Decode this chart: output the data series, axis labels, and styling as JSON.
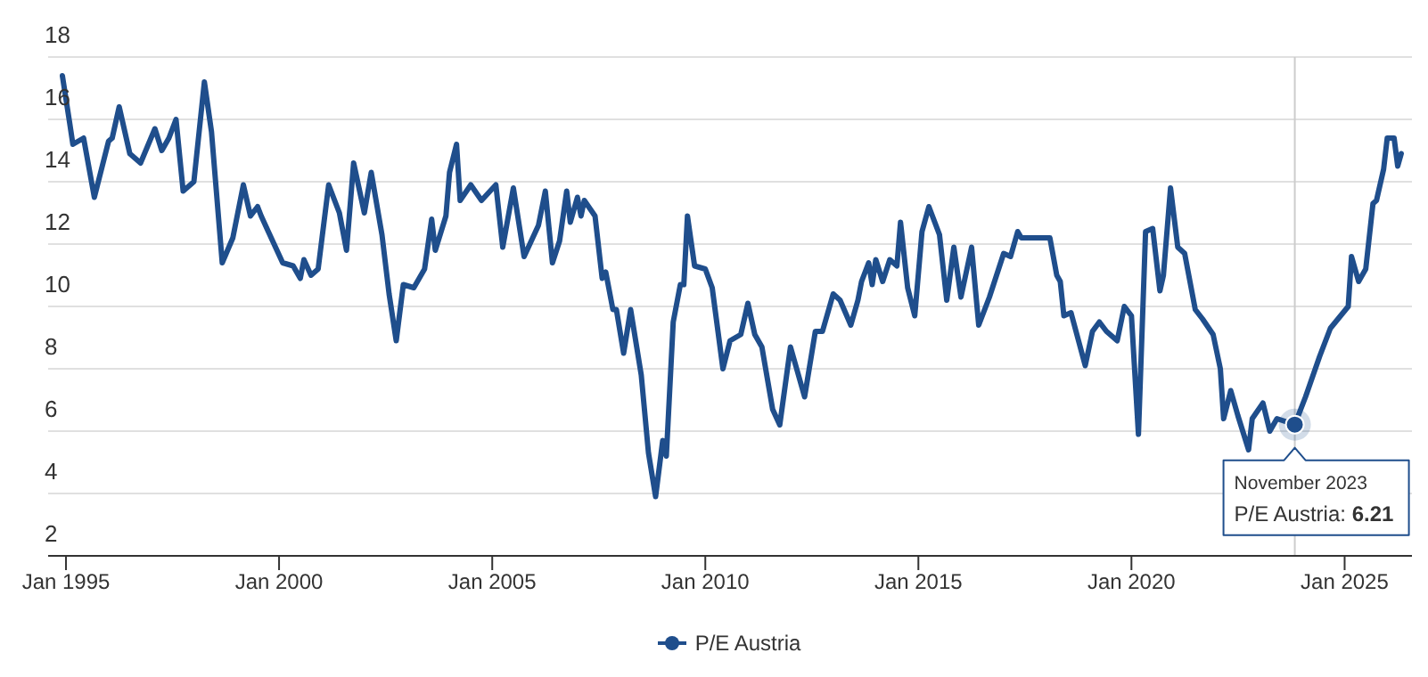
{
  "chart_data": {
    "type": "line",
    "x": [
      "1994-12",
      "1995-02",
      "1995-03",
      "1995-06",
      "1995-09",
      "1996-01",
      "1996-02",
      "1996-04",
      "1996-07",
      "1996-10",
      "1997-02",
      "1997-04",
      "1997-06",
      "1997-08",
      "1997-10",
      "1998-01",
      "1998-03",
      "1998-04",
      "1998-06",
      "1998-09",
      "1998-12",
      "1999-03",
      "1999-05",
      "1999-07",
      "1999-08",
      "1999-10",
      "2000-02",
      "2000-05",
      "2000-07",
      "2000-08",
      "2000-10",
      "2000-12",
      "2001-03",
      "2001-06",
      "2001-08",
      "2001-10",
      "2002-01",
      "2002-03",
      "2002-06",
      "2002-08",
      "2002-10",
      "2002-12",
      "2003-03",
      "2003-06",
      "2003-08",
      "2003-09",
      "2003-12",
      "2004-01",
      "2004-03",
      "2004-04",
      "2004-07",
      "2004-10",
      "2005-02",
      "2005-04",
      "2005-07",
      "2005-10",
      "2006-02",
      "2006-04",
      "2006-06",
      "2006-08",
      "2006-10",
      "2006-11",
      "2007-01",
      "2007-02",
      "2007-03",
      "2007-06",
      "2007-08",
      "2007-09",
      "2007-11",
      "2007-12",
      "2008-02",
      "2008-04",
      "2008-07",
      "2008-09",
      "2008-11",
      "2009-01",
      "2009-02",
      "2009-04",
      "2009-06",
      "2009-07",
      "2009-08",
      "2009-10",
      "2010-01",
      "2010-03",
      "2010-06",
      "2010-08",
      "2010-11",
      "2011-01",
      "2011-03",
      "2011-05",
      "2011-08",
      "2011-10",
      "2012-01",
      "2012-05",
      "2012-08",
      "2012-10",
      "2013-01",
      "2013-03",
      "2013-06",
      "2013-08",
      "2013-09",
      "2013-11",
      "2013-12",
      "2014-01",
      "2014-03",
      "2014-05",
      "2014-07",
      "2014-08",
      "2014-10",
      "2014-12",
      "2015-02",
      "2015-04",
      "2015-07",
      "2015-09",
      "2015-11",
      "2016-01",
      "2016-04",
      "2016-06",
      "2016-09",
      "2016-11",
      "2017-01",
      "2017-03",
      "2017-05",
      "2017-06",
      "2018-02",
      "2018-04",
      "2018-05",
      "2018-06",
      "2018-08",
      "2018-12",
      "2019-02",
      "2019-04",
      "2019-06",
      "2019-09",
      "2019-11",
      "2020-01",
      "2020-03",
      "2020-05",
      "2020-07",
      "2020-09",
      "2020-10",
      "2020-12",
      "2021-02",
      "2021-04",
      "2021-07",
      "2021-09",
      "2021-12",
      "2022-02",
      "2022-03",
      "2022-05",
      "2022-07",
      "2022-10",
      "2022-11",
      "2023-02",
      "2023-04",
      "2023-06",
      "2023-11",
      "2024-02",
      "2024-06",
      "2024-09",
      "2025-02",
      "2025-03",
      "2025-05",
      "2025-07",
      "2025-09",
      "2025-10",
      "2025-12",
      "2026-01",
      "2026-03",
      "2026-04",
      "2026-05"
    ],
    "series": [
      {
        "name": "P/E Austria",
        "color": "#1f4e8c",
        "values": [
          17.4,
          15.9,
          15.2,
          15.4,
          13.5,
          15.3,
          15.4,
          16.4,
          14.9,
          14.6,
          15.7,
          15.0,
          15.4,
          16.0,
          13.7,
          14.0,
          16.1,
          17.2,
          15.6,
          11.4,
          12.2,
          13.9,
          12.9,
          13.2,
          12.9,
          12.4,
          11.4,
          11.3,
          10.9,
          11.5,
          11.0,
          11.2,
          13.9,
          13.0,
          11.8,
          14.6,
          13.0,
          14.3,
          12.3,
          10.4,
          8.9,
          10.7,
          10.6,
          11.2,
          12.8,
          11.8,
          12.9,
          14.3,
          15.2,
          13.4,
          13.9,
          13.4,
          13.9,
          11.9,
          13.8,
          11.6,
          12.6,
          13.7,
          11.4,
          12.1,
          13.7,
          12.7,
          13.5,
          12.9,
          13.4,
          12.9,
          10.9,
          11.1,
          9.9,
          9.9,
          8.5,
          9.9,
          7.8,
          5.3,
          3.9,
          5.7,
          5.2,
          9.5,
          10.7,
          10.7,
          12.9,
          11.3,
          11.2,
          10.6,
          8.0,
          8.9,
          9.1,
          10.1,
          9.1,
          8.7,
          6.7,
          6.2,
          8.7,
          7.1,
          9.2,
          9.2,
          10.4,
          10.2,
          9.4,
          10.2,
          10.8,
          11.4,
          10.7,
          11.5,
          10.8,
          11.5,
          11.3,
          12.7,
          10.6,
          9.7,
          12.4,
          13.2,
          12.3,
          10.2,
          11.9,
          10.3,
          11.9,
          9.4,
          10.3,
          11.0,
          11.7,
          11.6,
          12.4,
          12.2,
          12.2,
          11.0,
          10.8,
          9.7,
          9.8,
          8.1,
          9.2,
          9.5,
          9.2,
          8.9,
          10.0,
          9.7,
          5.9,
          12.4,
          12.5,
          10.5,
          11.0,
          13.8,
          11.9,
          11.7,
          9.9,
          9.6,
          9.1,
          8.0,
          6.4,
          7.3,
          6.5,
          5.4,
          6.4,
          6.9,
          6.0,
          6.4,
          6.21,
          7.1,
          8.4,
          9.3,
          10.0,
          11.6,
          10.8,
          11.2,
          13.3,
          13.4,
          14.4,
          15.4,
          15.4,
          14.5,
          14.9
        ]
      }
    ],
    "xlim": [
      "1994-08",
      "2026-08"
    ],
    "xticks": [
      {
        "value": "1995-01",
        "label": "Jan 1995"
      },
      {
        "value": "2000-01",
        "label": "Jan 2000"
      },
      {
        "value": "2005-01",
        "label": "Jan 2005"
      },
      {
        "value": "2010-01",
        "label": "Jan 2010"
      },
      {
        "value": "2015-01",
        "label": "Jan 2015"
      },
      {
        "value": "2020-01",
        "label": "Jan 2020"
      },
      {
        "value": "2025-01",
        "label": "Jan 2025"
      }
    ],
    "ylim": [
      2,
      18
    ],
    "yticks": [
      2,
      4,
      6,
      8,
      10,
      12,
      14,
      16,
      18
    ],
    "grid": "y",
    "legend": "bottom",
    "marker": "none",
    "line_style": "solid",
    "ref_lines": [
      {
        "axis": "x",
        "value": "2023-11",
        "color": "#cccccc"
      }
    ],
    "annotations": [
      {
        "text": "November 2023",
        "x": "2023-11",
        "y": 6.21
      },
      "P/E Austria: 6.21"
    ]
  }
}
